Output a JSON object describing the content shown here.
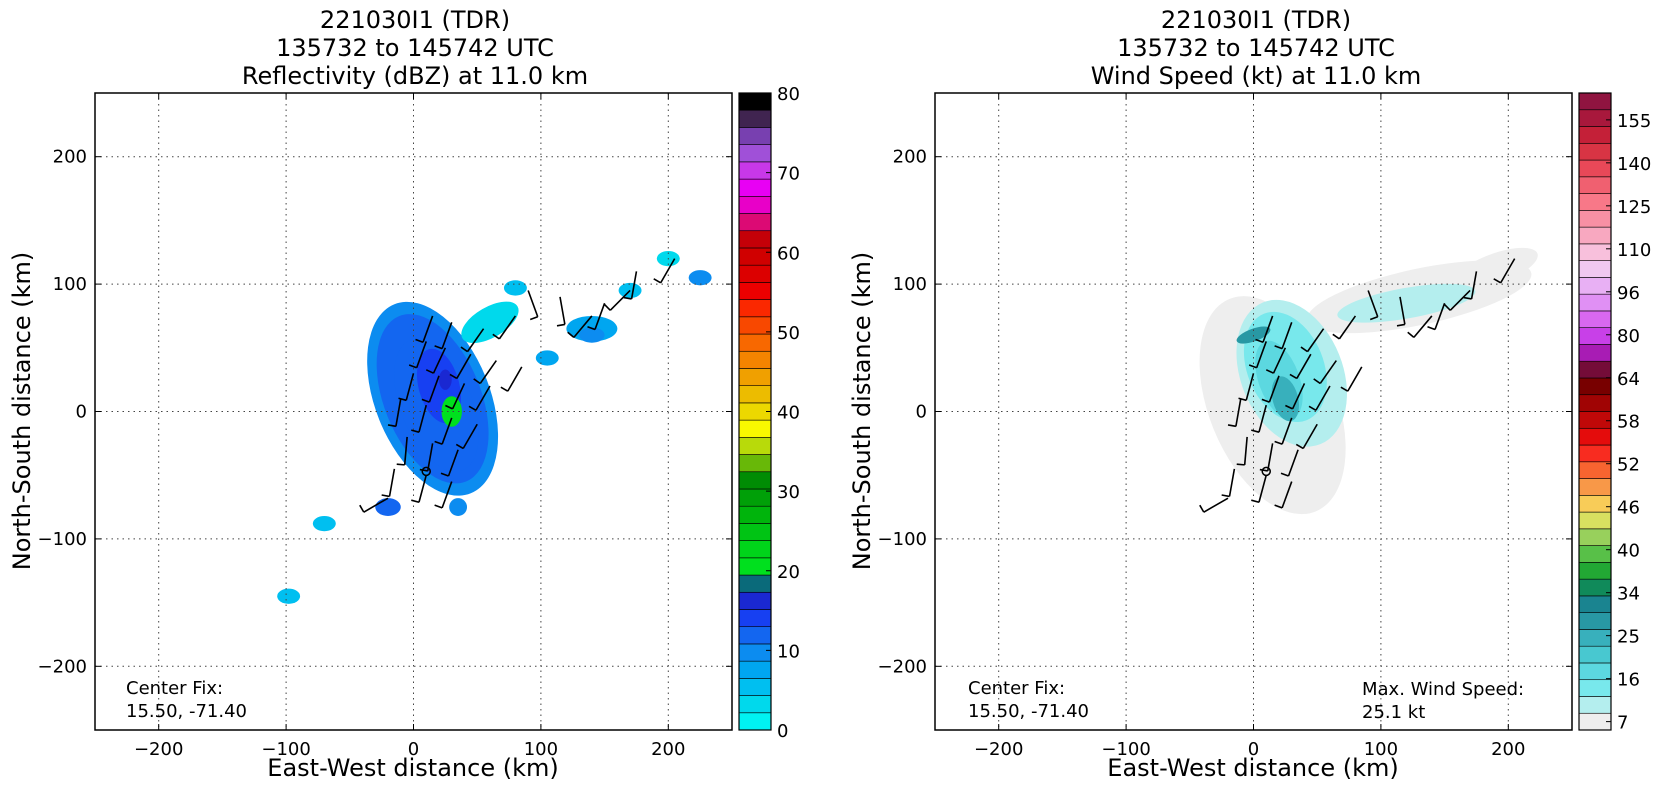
{
  "chart_data": [
    {
      "type": "heatmap",
      "title_lines": [
        "221030I1 (TDR)",
        "135732 to 145742 UTC",
        "Reflectivity (dBZ) at 11.0 km"
      ],
      "xlabel": "East-West distance (km)",
      "ylabel": "North-South distance (km)",
      "xlim": [
        -250,
        250
      ],
      "ylim": [
        -250,
        250
      ],
      "xticks": [
        -200,
        -100,
        0,
        100,
        200
      ],
      "yticks": [
        -200,
        -100,
        0,
        100,
        200
      ],
      "xtick_labels": [
        "−200",
        "−100",
        "0",
        "100",
        "200"
      ],
      "ytick_labels": [
        "−200",
        "−100",
        "0",
        "100",
        "200"
      ],
      "grid": true,
      "annotation_left": [
        "Center Fix:",
        "15.50, -71.40"
      ],
      "colorbar": {
        "min": 0,
        "max": 80,
        "colors": [
          "#00f2f2",
          "#00d9ec",
          "#00bff0",
          "#00a6f0",
          "#0c8cf0",
          "#1366f0",
          "#1740f2",
          "#1a28d2",
          "#0a6a7a",
          "#00e01e",
          "#00d41a",
          "#00c414",
          "#00b40c",
          "#00a008",
          "#008c04",
          "#68b808",
          "#b8da0a",
          "#f8f800",
          "#ecd800",
          "#ecbc00",
          "#f0a000",
          "#f48400",
          "#f86800",
          "#f84800",
          "#fa2800",
          "#ec0000",
          "#dc0000",
          "#d00000",
          "#c40008",
          "#dc0a74",
          "#e800c8",
          "#e800f4",
          "#c838e8",
          "#a050d8",
          "#7840b0",
          "#402450",
          "#000000"
        ],
        "tick_values": [
          0,
          10,
          20,
          30,
          40,
          50,
          60,
          70,
          80
        ],
        "tick_labels": [
          "0",
          "10",
          "20",
          "30",
          "40",
          "50",
          "60",
          "70",
          "80"
        ]
      },
      "echoes_dbz": [
        {
          "x": 0,
          "y": 15,
          "dbz": 12
        },
        {
          "x": 20,
          "y": 10,
          "dbz": 12
        },
        {
          "x": 30,
          "y": 0,
          "dbz": 16
        },
        {
          "x": -10,
          "y": 50,
          "dbz": 11
        },
        {
          "x": 40,
          "y": 60,
          "dbz": 10
        },
        {
          "x": 25,
          "y": -50,
          "dbz": 13
        },
        {
          "x": -20,
          "y": -75,
          "dbz": 12
        },
        {
          "x": 35,
          "y": -75,
          "dbz": 11
        },
        {
          "x": 140,
          "y": 65,
          "dbz": 8
        },
        {
          "x": 225,
          "y": 105,
          "dbz": 10
        },
        {
          "x": 170,
          "y": 95,
          "dbz": 5
        },
        {
          "x": 200,
          "y": 120,
          "dbz": 4
        },
        {
          "x": 105,
          "y": 42,
          "dbz": 7
        },
        {
          "x": -70,
          "y": -88,
          "dbz": 6
        },
        {
          "x": -98,
          "y": -145,
          "dbz": 6
        },
        {
          "x": 80,
          "y": 97,
          "dbz": 6
        },
        {
          "x": 30,
          "y": 0,
          "dbz": 22
        },
        {
          "x": 25,
          "y": 30,
          "dbz": 18
        }
      ]
    },
    {
      "type": "heatmap",
      "title_lines": [
        "221030I1 (TDR)",
        "135732 to 145742 UTC",
        "Wind Speed (kt) at 11.0 km"
      ],
      "xlabel": "East-West distance (km)",
      "ylabel": "North-South distance (km)",
      "xlim": [
        -250,
        250
      ],
      "ylim": [
        -250,
        250
      ],
      "xticks": [
        -200,
        -100,
        0,
        100,
        200
      ],
      "yticks": [
        -200,
        -100,
        0,
        100,
        200
      ],
      "xtick_labels": [
        "−200",
        "−100",
        "0",
        "100",
        "200"
      ],
      "ytick_labels": [
        "−200",
        "−100",
        "0",
        "100",
        "200"
      ],
      "grid": true,
      "annotation_left": [
        "Center Fix:",
        "15.50, -71.40"
      ],
      "annotation_right": [
        "Max. Wind Speed:",
        "25.1 kt"
      ],
      "colorbar": {
        "colors": [
          "#eeeeee",
          "#b4eeee",
          "#78e8ec",
          "#5cd8e0",
          "#48c8d0",
          "#38b0bc",
          "#2898a4",
          "#1a8490",
          "#108a5a",
          "#22a834",
          "#58c048",
          "#98d05c",
          "#d8e060",
          "#f8cc58",
          "#f89848",
          "#f86430",
          "#f82c20",
          "#e40c0c",
          "#c00808",
          "#a00404",
          "#780000",
          "#740c38",
          "#a81cb4",
          "#c840e8",
          "#d868f0",
          "#e090f4",
          "#e8b0f4",
          "#f0c8f0",
          "#f8c0dc",
          "#f8a8c0",
          "#f890a4",
          "#f87888",
          "#f06070",
          "#e84858",
          "#d83444",
          "#c42038",
          "#a8183c",
          "#901440"
        ],
        "tick_labels": [
          "7",
          "16",
          "25",
          "34",
          "40",
          "46",
          "52",
          "58",
          "64",
          "80",
          "96",
          "110",
          "125",
          "140",
          "155"
        ]
      },
      "wind_kt": [
        {
          "x": 0,
          "y": 0,
          "kt": 3
        },
        {
          "x": 25,
          "y": 20,
          "kt": 18
        },
        {
          "x": 35,
          "y": 45,
          "kt": 14
        },
        {
          "x": 10,
          "y": 40,
          "kt": 22
        },
        {
          "x": -5,
          "y": 60,
          "kt": 24
        },
        {
          "x": 60,
          "y": 40,
          "kt": 12
        },
        {
          "x": 110,
          "y": 90,
          "kt": 12
        },
        {
          "x": 145,
          "y": 60,
          "kt": 10
        },
        {
          "x": 200,
          "y": 110,
          "kt": 5
        }
      ],
      "max_wind_speed_kt": 25.1
    }
  ]
}
